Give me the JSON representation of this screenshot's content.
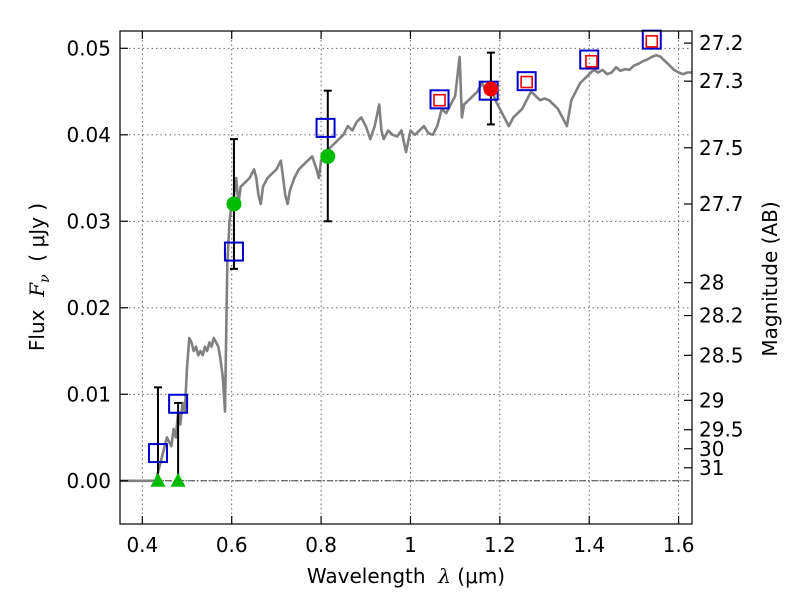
{
  "chart_data": {
    "type": "scatter",
    "title": "",
    "xlabel": {
      "prefix": "Wavelength  ",
      "symbol": "λ",
      "unit": " (μm)"
    },
    "ylabel": {
      "prefix": "Flux  ",
      "symbol": "F",
      "subscript": "ν",
      "unit": "  ( μJy )"
    },
    "ylabel_right": "Magnitude (AB)",
    "xlim": [
      0.35,
      1.63
    ],
    "ylim": [
      -0.005,
      0.052
    ],
    "grid": true,
    "xticks": [
      {
        "value": 0.4,
        "label": "0.4"
      },
      {
        "value": 0.6,
        "label": "0.6"
      },
      {
        "value": 0.8,
        "label": "0.8"
      },
      {
        "value": 1.0,
        "label": "1"
      },
      {
        "value": 1.2,
        "label": "1.2"
      },
      {
        "value": 1.4,
        "label": "1.4"
      },
      {
        "value": 1.6,
        "label": "1.6"
      }
    ],
    "yticks": [
      {
        "value": 0.0,
        "label": "0.00"
      },
      {
        "value": 0.01,
        "label": "0.01"
      },
      {
        "value": 0.02,
        "label": "0.02"
      },
      {
        "value": 0.03,
        "label": "0.03"
      },
      {
        "value": 0.04,
        "label": "0.04"
      },
      {
        "value": 0.05,
        "label": "0.05"
      }
    ],
    "mag_ticks": [
      {
        "flux": 0.0506,
        "label": "27.2"
      },
      {
        "flux": 0.0462,
        "label": "27.3"
      },
      {
        "flux": 0.0385,
        "label": "27.5"
      },
      {
        "flux": 0.032,
        "label": "27.7"
      },
      {
        "flux": 0.0229,
        "label": "28"
      },
      {
        "flux": 0.0191,
        "label": "28.2"
      },
      {
        "flux": 0.0145,
        "label": "28.5"
      },
      {
        "flux": 0.0093,
        "label": "29"
      },
      {
        "flux": 0.0059,
        "label": "29.5"
      },
      {
        "flux": 0.0037,
        "label": "30"
      },
      {
        "flux": 0.0015,
        "label": "31"
      }
    ],
    "series": [
      {
        "name": "model-spectrum",
        "kind": "line",
        "color": "#808080",
        "points": [
          [
            0.35,
            0.0
          ],
          [
            0.4,
            0.0
          ],
          [
            0.43,
            0.0
          ],
          [
            0.445,
            0.003
          ],
          [
            0.455,
            0.005
          ],
          [
            0.465,
            0.004
          ],
          [
            0.47,
            0.006
          ],
          [
            0.475,
            0.005
          ],
          [
            0.48,
            0.008
          ],
          [
            0.485,
            0.0065
          ],
          [
            0.49,
            0.009
          ],
          [
            0.495,
            0.008
          ],
          [
            0.5,
            0.013
          ],
          [
            0.505,
            0.0165
          ],
          [
            0.51,
            0.016
          ],
          [
            0.515,
            0.015
          ],
          [
            0.52,
            0.0155
          ],
          [
            0.525,
            0.0145
          ],
          [
            0.53,
            0.015
          ],
          [
            0.535,
            0.0145
          ],
          [
            0.54,
            0.0155
          ],
          [
            0.545,
            0.015
          ],
          [
            0.55,
            0.016
          ],
          [
            0.555,
            0.0155
          ],
          [
            0.56,
            0.0165
          ],
          [
            0.565,
            0.016
          ],
          [
            0.57,
            0.0155
          ],
          [
            0.575,
            0.014
          ],
          [
            0.58,
            0.012
          ],
          [
            0.585,
            0.008
          ],
          [
            0.59,
            0.025
          ],
          [
            0.595,
            0.03
          ],
          [
            0.6,
            0.032
          ],
          [
            0.605,
            0.033
          ],
          [
            0.61,
            0.035
          ],
          [
            0.615,
            0.032
          ],
          [
            0.62,
            0.034
          ],
          [
            0.63,
            0.0345
          ],
          [
            0.64,
            0.035
          ],
          [
            0.65,
            0.036
          ],
          [
            0.655,
            0.035
          ],
          [
            0.66,
            0.033
          ],
          [
            0.665,
            0.032
          ],
          [
            0.67,
            0.034
          ],
          [
            0.68,
            0.035
          ],
          [
            0.69,
            0.0355
          ],
          [
            0.7,
            0.036
          ],
          [
            0.71,
            0.037
          ],
          [
            0.715,
            0.035
          ],
          [
            0.72,
            0.033
          ],
          [
            0.725,
            0.032
          ],
          [
            0.73,
            0.0335
          ],
          [
            0.74,
            0.035
          ],
          [
            0.75,
            0.036
          ],
          [
            0.76,
            0.0365
          ],
          [
            0.77,
            0.037
          ],
          [
            0.78,
            0.0375
          ],
          [
            0.79,
            0.036
          ],
          [
            0.795,
            0.035
          ],
          [
            0.8,
            0.037
          ],
          [
            0.81,
            0.038
          ],
          [
            0.82,
            0.0385
          ],
          [
            0.83,
            0.039
          ],
          [
            0.84,
            0.0395
          ],
          [
            0.85,
            0.04
          ],
          [
            0.86,
            0.041
          ],
          [
            0.87,
            0.0405
          ],
          [
            0.88,
            0.0415
          ],
          [
            0.89,
            0.042
          ],
          [
            0.9,
            0.041
          ],
          [
            0.91,
            0.0395
          ],
          [
            0.92,
            0.041
          ],
          [
            0.93,
            0.0435
          ],
          [
            0.935,
            0.0405
          ],
          [
            0.94,
            0.0395
          ],
          [
            0.95,
            0.0405
          ],
          [
            0.96,
            0.04
          ],
          [
            0.97,
            0.0398
          ],
          [
            0.98,
            0.0405
          ],
          [
            0.99,
            0.038
          ],
          [
            1.0,
            0.0405
          ],
          [
            1.01,
            0.04
          ],
          [
            1.02,
            0.0405
          ],
          [
            1.03,
            0.041
          ],
          [
            1.04,
            0.0402
          ],
          [
            1.05,
            0.04
          ],
          [
            1.06,
            0.041
          ],
          [
            1.07,
            0.043
          ],
          [
            1.08,
            0.0425
          ],
          [
            1.09,
            0.0435
          ],
          [
            1.1,
            0.0445
          ],
          [
            1.11,
            0.049
          ],
          [
            1.115,
            0.042
          ],
          [
            1.12,
            0.0435
          ],
          [
            1.13,
            0.044
          ],
          [
            1.14,
            0.0445
          ],
          [
            1.15,
            0.045
          ],
          [
            1.16,
            0.046
          ],
          [
            1.17,
            0.045
          ],
          [
            1.18,
            0.0455
          ],
          [
            1.19,
            0.044
          ],
          [
            1.2,
            0.043
          ],
          [
            1.21,
            0.042
          ],
          [
            1.22,
            0.041
          ],
          [
            1.23,
            0.042
          ],
          [
            1.24,
            0.0425
          ],
          [
            1.25,
            0.043
          ],
          [
            1.26,
            0.044
          ],
          [
            1.27,
            0.045
          ],
          [
            1.28,
            0.0445
          ],
          [
            1.29,
            0.044
          ],
          [
            1.3,
            0.0442
          ],
          [
            1.31,
            0.044
          ],
          [
            1.32,
            0.0435
          ],
          [
            1.33,
            0.043
          ],
          [
            1.34,
            0.042
          ],
          [
            1.35,
            0.041
          ],
          [
            1.36,
            0.044
          ],
          [
            1.37,
            0.045
          ],
          [
            1.38,
            0.046
          ],
          [
            1.39,
            0.0465
          ],
          [
            1.4,
            0.047
          ],
          [
            1.41,
            0.0475
          ],
          [
            1.42,
            0.0472
          ],
          [
            1.43,
            0.0475
          ],
          [
            1.44,
            0.047
          ],
          [
            1.45,
            0.0472
          ],
          [
            1.46,
            0.0478
          ],
          [
            1.47,
            0.0474
          ],
          [
            1.48,
            0.0476
          ],
          [
            1.49,
            0.0475
          ],
          [
            1.5,
            0.048
          ],
          [
            1.51,
            0.0482
          ],
          [
            1.52,
            0.0485
          ],
          [
            1.53,
            0.0487
          ],
          [
            1.54,
            0.049
          ],
          [
            1.55,
            0.0492
          ],
          [
            1.56,
            0.049
          ],
          [
            1.57,
            0.0485
          ],
          [
            1.58,
            0.048
          ],
          [
            1.59,
            0.0475
          ],
          [
            1.6,
            0.0472
          ],
          [
            1.61,
            0.047
          ],
          [
            1.62,
            0.0472
          ],
          [
            1.63,
            0.0472
          ]
        ]
      },
      {
        "name": "model-bandpass-flux",
        "kind": "open-square",
        "color": "#0000cc",
        "points": [
          [
            0.435,
            0.0032
          ],
          [
            0.48,
            0.0089
          ],
          [
            0.605,
            0.0265
          ],
          [
            0.81,
            0.0408
          ],
          [
            1.065,
            0.0441
          ],
          [
            1.175,
            0.0451
          ],
          [
            1.26,
            0.0462
          ],
          [
            1.4,
            0.0487
          ],
          [
            1.54,
            0.051
          ]
        ]
      },
      {
        "name": "observed-ground",
        "kind": "filled-circle",
        "color": "#00bb00",
        "points": [
          [
            0.605,
            0.032
          ],
          [
            0.815,
            0.0375
          ]
        ]
      },
      {
        "name": "observed-upper-limit",
        "kind": "filled-triangle",
        "color": "#00bb00",
        "points": [
          [
            0.435,
            0.0
          ],
          [
            0.48,
            0.0
          ]
        ]
      },
      {
        "name": "observed-nir",
        "kind": "filled-circle",
        "color": "#ee0000",
        "points": [
          [
            1.18,
            0.0453
          ]
        ]
      },
      {
        "name": "observed-hst",
        "kind": "small-open-square",
        "color": "#ee0000",
        "points": [
          [
            1.065,
            0.044
          ],
          [
            1.26,
            0.0461
          ],
          [
            1.405,
            0.0485
          ],
          [
            1.54,
            0.0508
          ]
        ]
      }
    ],
    "error_bars": [
      {
        "x": 0.435,
        "low": 0.0,
        "high": 0.0108
      },
      {
        "x": 0.48,
        "low": 0.0,
        "high": 0.009
      },
      {
        "x": 0.605,
        "low": 0.0245,
        "high": 0.0395
      },
      {
        "x": 0.815,
        "low": 0.03,
        "high": 0.0451
      },
      {
        "x": 1.18,
        "low": 0.0412,
        "high": 0.0495
      }
    ]
  }
}
